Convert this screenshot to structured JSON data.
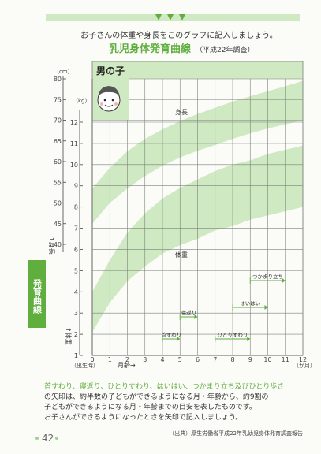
{
  "header": {
    "instruction": "お子さんの体重や身長をこのグラフに記入しましょう。",
    "title": "乳児身体発育曲線",
    "subtitle": "（平成22年調査）"
  },
  "side_tab": {
    "label": "発育曲線"
  },
  "chart_data": {
    "type": "area",
    "title": "男の子",
    "x": {
      "label": "月齢→",
      "unit": "（か月）",
      "start_label": "（出生時）",
      "range": [
        0,
        12
      ],
      "ticks": [
        "0",
        "1",
        "2",
        "3",
        "4",
        "5",
        "6",
        "7",
        "8",
        "9",
        "10",
        "11",
        "12"
      ]
    },
    "y_height": {
      "label": "↑身長",
      "unit": "（cm）",
      "range": [
        40,
        80
      ],
      "ticks": [
        "80",
        "75",
        "70",
        "65",
        "60",
        "55",
        "50",
        "45",
        "40"
      ]
    },
    "y_weight": {
      "label": "↑体重",
      "unit": "（kg）",
      "range": [
        1,
        12
      ],
      "ticks": [
        "12",
        "11",
        "10",
        "9",
        "8",
        "7",
        "6",
        "5",
        "4",
        "3",
        "2",
        "1"
      ]
    },
    "bands": [
      {
        "name": "身長",
        "axis": "height",
        "x": [
          0,
          1,
          2,
          3,
          4,
          5,
          6,
          7,
          8,
          9,
          10,
          11,
          12
        ],
        "upper": [
          53.5,
          58.5,
          62.5,
          65.5,
          67.8,
          69.8,
          71.5,
          73.0,
          74.5,
          75.8,
          77.0,
          78.2,
          79.5
        ],
        "lower": [
          45.0,
          50.0,
          53.5,
          56.5,
          59.0,
          61.0,
          62.6,
          64.0,
          65.5,
          66.8,
          68.0,
          69.0,
          70.0
        ]
      },
      {
        "name": "体重",
        "axis": "weight",
        "x": [
          0,
          1,
          2,
          3,
          4,
          5,
          6,
          7,
          8,
          9,
          10,
          11,
          12
        ],
        "upper": [
          4.0,
          5.5,
          6.8,
          7.7,
          8.4,
          8.9,
          9.3,
          9.7,
          10.0,
          10.2,
          10.5,
          10.7,
          10.9
        ],
        "lower": [
          2.1,
          3.5,
          4.5,
          5.2,
          5.8,
          6.2,
          6.5,
          6.9,
          7.1,
          7.4,
          7.6,
          7.8,
          8.0
        ]
      }
    ],
    "milestones": [
      {
        "label": "首すわり",
        "range": [
          4,
          5
        ]
      },
      {
        "label": "寝返り",
        "range": [
          5,
          6
        ]
      },
      {
        "label": "ひとりすわり",
        "range": [
          7,
          9
        ]
      },
      {
        "label": "はいはい",
        "range": [
          8,
          10
        ]
      },
      {
        "label": "つかまり立ち",
        "range": [
          9,
          11
        ]
      }
    ],
    "colors": {
      "band": "#cfe9c2",
      "grid": "#7d807b",
      "accent": "#5fae3e"
    }
  },
  "note": {
    "highlight": "首すわり、寝返り、ひとりすわり、はいはい、つかまり立ち及びひとり歩き",
    "line1_rest": "の矢印は、約半数の子どもができるようになる月・年齢から、約9割の",
    "line2": "子どもができるようになる月・年齢までの目安を表したものです。",
    "line3": "お子さんができるようになったときを矢印で記入しましょう。"
  },
  "source": "（出典）厚生労働省平成22年乳幼児身体発育調査報告",
  "page_number": "42"
}
